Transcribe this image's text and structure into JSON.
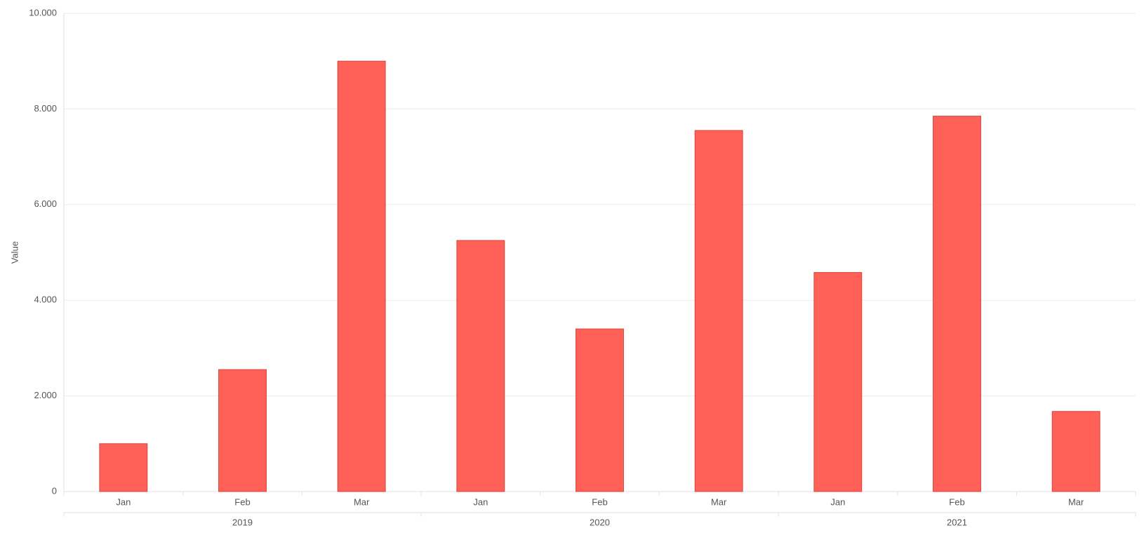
{
  "chart_data": {
    "type": "bar",
    "y_label": "Value",
    "categories": [
      "Jan",
      "Feb",
      "Mar",
      "Jan",
      "Feb",
      "Mar",
      "Jan",
      "Feb",
      "Mar"
    ],
    "groups": [
      "2019",
      "2020",
      "2021"
    ],
    "values": [
      1000,
      2550,
      9000,
      5250,
      3400,
      7550,
      4580,
      7850,
      1675
    ],
    "color": "#ff6159",
    "border_color": "#d9423a",
    "ylim": [
      0,
      10000
    ],
    "yticks": [
      0,
      {
        "value": 2000,
        "label": "2.000"
      },
      {
        "value": 4000,
        "label": "4.000"
      },
      {
        "value": 6000,
        "label": "6.000"
      },
      {
        "value": 8000,
        "label": "8.000"
      },
      {
        "value": 10000,
        "label": "10.000"
      }
    ],
    "grid": true
  }
}
